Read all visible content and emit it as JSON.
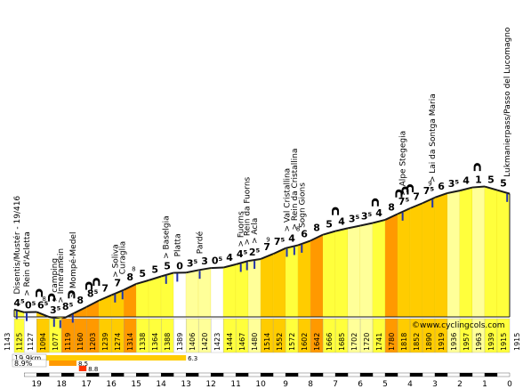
{
  "chart_data": {
    "type": "area",
    "title": "",
    "credit": "©www.cyclingcols.com",
    "x_ticks": [
      "19",
      "18",
      "17",
      "16",
      "15",
      "14",
      "13",
      "12",
      "11",
      "10",
      "9",
      "8",
      "7",
      "6",
      "5",
      "4",
      "3",
      "2",
      "1",
      "0"
    ],
    "x_domain": [
      19.9,
      0
    ],
    "y_domain": [
      1100,
      1990
    ],
    "start_label": "1143",
    "end_label": "1915",
    "segments": [
      {
        "x0": 19.9,
        "x1": 19.5,
        "elev_end": 1125,
        "grad": "4⁵",
        "grad_pct": 4.5,
        "color": "#ffff3c"
      },
      {
        "x0": 19.5,
        "x1": 19.0,
        "elev_end": 1127,
        "grad": "0⁵",
        "grad_pct": 0.5,
        "color": "#ffffff"
      },
      {
        "x0": 19.0,
        "x1": 18.5,
        "elev_end": 1094,
        "grad": "6⁵",
        "grad_pct": 6.5,
        "color": "#ffcc00"
      },
      {
        "x0": 18.5,
        "x1": 18.0,
        "elev_end": 1077,
        "grad": "3⁵",
        "grad_pct": 3.5,
        "color": "#ffff3c"
      },
      {
        "x0": 18.0,
        "x1": 17.5,
        "elev_end": 1119,
        "grad": "8⁵",
        "grad_pct": 8.5,
        "color": "#ff9900"
      },
      {
        "x0": 17.5,
        "x1": 17.0,
        "elev_end": 1160,
        "grad": "8",
        "grad_pct": 8.0,
        "color": "#ff9900"
      },
      {
        "x0": 17.0,
        "x1": 16.5,
        "elev_end": 1203,
        "grad": "8⁵",
        "grad_pct": 8.5,
        "color": "#ff9900"
      },
      {
        "x0": 16.5,
        "x1": 16.0,
        "elev_end": 1239,
        "grad": "7",
        "grad_pct": 7.0,
        "color": "#ffcc00"
      },
      {
        "x0": 16.0,
        "x1": 15.5,
        "elev_end": 1274,
        "grad": "7",
        "grad_pct": 7.0,
        "color": "#ffcc00"
      },
      {
        "x0": 15.5,
        "x1": 15.0,
        "elev_end": 1314,
        "grad": "8",
        "grad_pct": 8.0,
        "color": "#ff9900"
      },
      {
        "x0": 15.0,
        "x1": 14.5,
        "elev_end": 1338,
        "grad": "5",
        "grad_pct": 5.0,
        "color": "#ffff3c"
      },
      {
        "x0": 14.5,
        "x1": 14.0,
        "elev_end": 1364,
        "grad": "5",
        "grad_pct": 5.0,
        "color": "#ffff3c"
      },
      {
        "x0": 14.0,
        "x1": 13.5,
        "elev_end": 1388,
        "grad": "5",
        "grad_pct": 5.0,
        "color": "#ffff3c"
      },
      {
        "x0": 13.5,
        "x1": 13.0,
        "elev_end": 1389,
        "grad": "0",
        "grad_pct": 0.0,
        "color": "#ffffff"
      },
      {
        "x0": 13.0,
        "x1": 12.5,
        "elev_end": 1406,
        "grad": "3⁵",
        "grad_pct": 3.5,
        "color": "#ffff99"
      },
      {
        "x0": 12.5,
        "x1": 12.0,
        "elev_end": 1420,
        "grad": "3",
        "grad_pct": 3.0,
        "color": "#ffff99"
      },
      {
        "x0": 12.0,
        "x1": 11.5,
        "elev_end": 1423,
        "grad": "0⁵",
        "grad_pct": 0.5,
        "color": "#ffffff"
      },
      {
        "x0": 11.5,
        "x1": 11.0,
        "elev_end": 1444,
        "grad": "4",
        "grad_pct": 4.0,
        "color": "#ffff3c"
      },
      {
        "x0": 11.0,
        "x1": 10.5,
        "elev_end": 1467,
        "grad": "4⁵",
        "grad_pct": 4.5,
        "color": "#ffff3c"
      },
      {
        "x0": 10.5,
        "x1": 10.0,
        "elev_end": 1480,
        "grad": "2⁵",
        "grad_pct": 2.5,
        "color": "#ffff99"
      },
      {
        "x0": 10.0,
        "x1": 9.5,
        "elev_end": 1514,
        "grad": "7",
        "grad_pct": 7.0,
        "color": "#ffcc00"
      },
      {
        "x0": 9.5,
        "x1": 9.0,
        "elev_end": 1552,
        "grad": "7⁵",
        "grad_pct": 7.5,
        "color": "#ffcc00"
      },
      {
        "x0": 9.0,
        "x1": 8.5,
        "elev_end": 1572,
        "grad": "4",
        "grad_pct": 4.0,
        "color": "#ffff3c"
      },
      {
        "x0": 8.5,
        "x1": 8.0,
        "elev_end": 1602,
        "grad": "6",
        "grad_pct": 6.0,
        "color": "#ffcc00"
      },
      {
        "x0": 8.0,
        "x1": 7.5,
        "elev_end": 1642,
        "grad": "8",
        "grad_pct": 8.0,
        "color": "#ff9900"
      },
      {
        "x0": 7.5,
        "x1": 7.0,
        "elev_end": 1666,
        "grad": "5",
        "grad_pct": 5.0,
        "color": "#ffff3c"
      },
      {
        "x0": 7.0,
        "x1": 6.5,
        "elev_end": 1685,
        "grad": "4",
        "grad_pct": 4.0,
        "color": "#ffff3c"
      },
      {
        "x0": 6.5,
        "x1": 6.0,
        "elev_end": 1702,
        "grad": "3⁵",
        "grad_pct": 3.5,
        "color": "#ffff99"
      },
      {
        "x0": 6.0,
        "x1": 5.5,
        "elev_end": 1720,
        "grad": "3⁵",
        "grad_pct": 3.5,
        "color": "#ffff99"
      },
      {
        "x0": 5.5,
        "x1": 5.0,
        "elev_end": 1741,
        "grad": "4",
        "grad_pct": 4.0,
        "color": "#ffff3c"
      },
      {
        "x0": 5.0,
        "x1": 4.5,
        "elev_end": 1780,
        "grad": "8",
        "grad_pct": 8.0,
        "color": "#ff9900"
      },
      {
        "x0": 4.5,
        "x1": 4.0,
        "elev_end": 1818,
        "grad": "7⁵",
        "grad_pct": 7.5,
        "color": "#ffcc00"
      },
      {
        "x0": 4.0,
        "x1": 3.5,
        "elev_end": 1852,
        "grad": "7",
        "grad_pct": 7.0,
        "color": "#ffcc00"
      },
      {
        "x0": 3.5,
        "x1": 3.0,
        "elev_end": 1890,
        "grad": "7⁵",
        "grad_pct": 7.5,
        "color": "#ffcc00"
      },
      {
        "x0": 3.0,
        "x1": 2.5,
        "elev_end": 1919,
        "grad": "6",
        "grad_pct": 6.0,
        "color": "#ffcc00"
      },
      {
        "x0": 2.5,
        "x1": 2.0,
        "elev_end": 1936,
        "grad": "3⁵",
        "grad_pct": 3.5,
        "color": "#ffff99"
      },
      {
        "x0": 2.0,
        "x1": 1.5,
        "elev_end": 1957,
        "grad": "4",
        "grad_pct": 4.0,
        "color": "#ffff3c"
      },
      {
        "x0": 1.5,
        "x1": 1.0,
        "elev_end": 1963,
        "grad": "1",
        "grad_pct": 1.0,
        "color": "#ffff99"
      },
      {
        "x0": 1.0,
        "x1": 0.5,
        "elev_end": 1939,
        "grad": "5",
        "grad_pct": 5.0,
        "color": "#ffff3c"
      },
      {
        "x0": 0.5,
        "x1": 0.0,
        "elev_end": 1915,
        "grad": "5",
        "grad_pct": 5.0,
        "color": "#ffff3c"
      }
    ],
    "locations": [
      {
        "x": 19.8,
        "label": "Disentis/Mustér - 19/416"
      },
      {
        "x": 19.4,
        "label": "> Rein d'Acletta"
      },
      {
        "x": 18.3,
        "label": "> camping"
      },
      {
        "x": 18.05,
        "label": "> Inneramein"
      },
      {
        "x": 17.55,
        "label": "> Mompé-Medel"
      },
      {
        "x": 15.85,
        "label": "> Soliva"
      },
      {
        "x": 15.55,
        "label": "Curaglia"
      },
      {
        "x": 13.8,
        "label": "> Baselgia"
      },
      {
        "x": 13.35,
        "label": "Platta"
      },
      {
        "x": 12.45,
        "label": "Pardé"
      },
      {
        "x": 10.8,
        "label": "> Fuorns"
      },
      {
        "x": 10.55,
        "label": "> Rein da Fuorns"
      },
      {
        "x": 10.25,
        "label": "> Acla"
      },
      {
        "x": 8.95,
        "label": "> Val Cristallina"
      },
      {
        "x": 8.65,
        "label": "> Rein da Cristallina"
      },
      {
        "x": 8.35,
        "label": "Sogn Gions"
      },
      {
        "x": 4.3,
        "label": "> Alpe Stegegia"
      },
      {
        "x": 3.1,
        "label": "> Lai da Sontga Maria"
      },
      {
        "x": 0.1,
        "label": "Lukmanierpass/Passo del Lucomagno"
      }
    ],
    "max_grades": [
      {
        "x": 18.7,
        "label": "8"
      },
      {
        "x": 15.1,
        "label": "8"
      },
      {
        "x": 9.7,
        "label": "9"
      },
      {
        "x": 8.5,
        "label": "8"
      },
      {
        "x": 3.2,
        "label": "9"
      }
    ],
    "tunnels": [
      18.9,
      18.4,
      17.6,
      16.9,
      16.6,
      4.45,
      4.2,
      4.0,
      5.4,
      7.0,
      1.3
    ],
    "legend_boxes": [
      {
        "label": "19.9km",
        "pct": "6.3",
        "x0": 19.9,
        "x1": 13.0,
        "row": 0,
        "color": "#ffcc00"
      },
      {
        "label": "8.9%",
        "pct": "8.5",
        "x0": 18.5,
        "x1": 17.4,
        "row": 1,
        "color": "#ff9900"
      },
      {
        "label": "",
        "pct": "8.8",
        "x0": 17.3,
        "x1": 17.0,
        "row": 2,
        "color": "#ff3300"
      }
    ]
  }
}
